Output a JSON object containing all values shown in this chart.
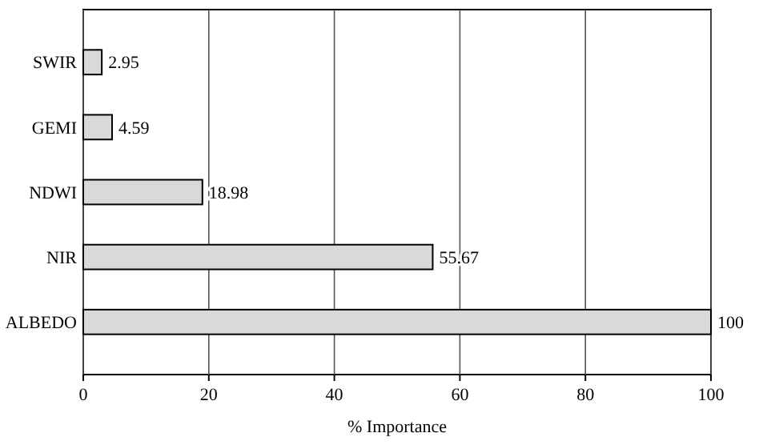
{
  "chart_data": {
    "type": "bar",
    "orientation": "horizontal",
    "xlabel": "% Importance",
    "categories": [
      "SWIR",
      "GEMI",
      "NDWI",
      "NIR",
      "ALBEDO"
    ],
    "values": [
      2.95,
      4.59,
      18.98,
      55.67,
      100
    ],
    "color": "#d9d9d9",
    "data_labels": true,
    "xlim": [
      0,
      100
    ],
    "xticks": [
      0,
      20,
      40,
      60,
      80,
      100
    ],
    "grid": "x"
  }
}
